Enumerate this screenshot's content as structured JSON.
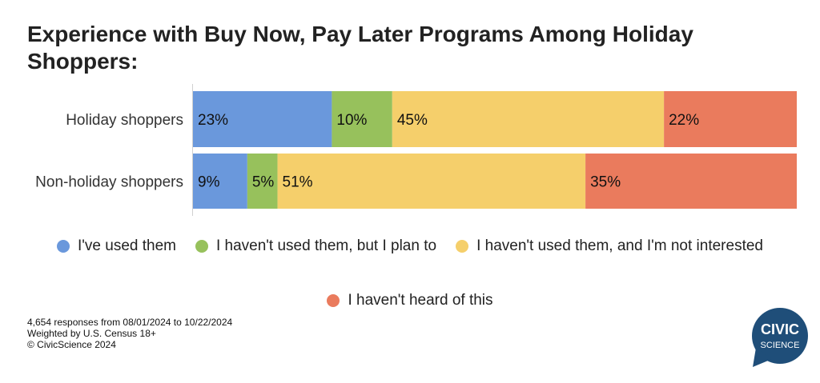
{
  "title": "Experience with Buy Now, Pay Later Programs Among Holiday Shoppers:",
  "chart_data": {
    "type": "bar",
    "orientation": "horizontal",
    "stacked": true,
    "percent_stacked": true,
    "categories": [
      "Holiday shoppers",
      "Non-holiday shoppers"
    ],
    "series": [
      {
        "name": "I've used them",
        "color": "#6a98dc",
        "values": [
          23,
          9
        ],
        "labels": [
          "23%",
          "9%"
        ]
      },
      {
        "name": "I haven't used them, but I plan to",
        "color": "#97c15c",
        "values": [
          10,
          5
        ],
        "labels": [
          "10%",
          "5%"
        ]
      },
      {
        "name": "I haven't used them, and I'm not interested",
        "color": "#f5cf6b",
        "values": [
          45,
          51
        ],
        "labels": [
          "45%",
          "51%"
        ]
      },
      {
        "name": "I haven't heard of this",
        "color": "#ea7b5d",
        "values": [
          22,
          35
        ],
        "labels": [
          "22%",
          "35%"
        ]
      }
    ],
    "xlim": [
      0,
      100
    ],
    "legend_position": "bottom",
    "grid": false
  },
  "footnote": {
    "line1": "4,654 responses from 08/01/2024 to 10/22/2024",
    "line2": "Weighted by U.S. Census 18+",
    "line3": "© CivicScience 2024"
  },
  "logo": {
    "line1": "CIVIC",
    "line2": "SCIENCE",
    "color": "#1f4e79"
  }
}
